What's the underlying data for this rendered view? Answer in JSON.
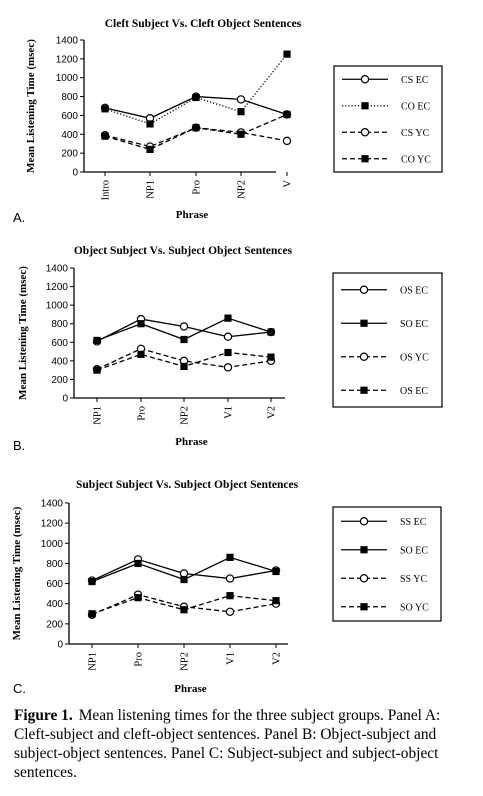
{
  "chart_data": [
    {
      "type": "line",
      "panel_label": "A.",
      "title": "Cleft Subject Vs. Cleft Object Sentences",
      "xlabel": "Phrase",
      "ylabel": "Mean Listening Time (msec)",
      "ylim": [
        0,
        1400
      ],
      "yticks": [
        0,
        200,
        400,
        600,
        800,
        1000,
        1200,
        1400
      ],
      "categories": [
        "Intro",
        "NP1",
        "Pro",
        "NP2",
        "V"
      ],
      "legend_position": "right",
      "series": [
        {
          "name": "CS EC",
          "style": "solid",
          "marker": "open",
          "values": [
            680,
            570,
            800,
            770,
            610
          ]
        },
        {
          "name": "CO EC",
          "style": "dotted",
          "marker": "filled",
          "values": [
            670,
            510,
            790,
            640,
            1250
          ]
        },
        {
          "name": "CS YC",
          "style": "dashed",
          "marker": "open",
          "values": [
            390,
            270,
            470,
            420,
            330
          ]
        },
        {
          "name": "CO YC",
          "style": "dashed",
          "marker": "filled",
          "values": [
            380,
            240,
            470,
            400,
            610
          ]
        }
      ]
    },
    {
      "type": "line",
      "panel_label": "B.",
      "title": "Object Subject Vs. Subject Object Sentences",
      "xlabel": "Phrase",
      "ylabel": "Mean Listening Time (msec)",
      "ylim": [
        0,
        1400
      ],
      "yticks": [
        0,
        200,
        400,
        600,
        800,
        1000,
        1200,
        1400
      ],
      "categories": [
        "NP1",
        "Pro",
        "NP2",
        "V1",
        "V2"
      ],
      "legend_position": "right",
      "series": [
        {
          "name": "OS EC",
          "style": "solid",
          "marker": "open",
          "values": [
            610,
            850,
            770,
            660,
            710
          ]
        },
        {
          "name": "SO EC",
          "style": "solid",
          "marker": "filled",
          "values": [
            620,
            800,
            630,
            860,
            710
          ]
        },
        {
          "name": "OS YC",
          "style": "dashed",
          "marker": "open",
          "values": [
            310,
            530,
            400,
            330,
            400
          ]
        },
        {
          "name": "OS EC",
          "style": "dashed",
          "marker": "filled",
          "values": [
            300,
            470,
            340,
            490,
            440
          ]
        }
      ]
    },
    {
      "type": "line",
      "panel_label": "C.",
      "title": "Subject Subject Vs. Subject Object Sentences",
      "xlabel": "Phrase",
      "ylabel": "Mean Listening Time (msec)",
      "ylim": [
        0,
        1400
      ],
      "yticks": [
        0,
        200,
        400,
        600,
        800,
        1000,
        1200,
        1400
      ],
      "categories": [
        "NP1",
        "Pro",
        "NP2",
        "V1",
        "V2"
      ],
      "legend_position": "right",
      "series": [
        {
          "name": "SS EC",
          "style": "solid",
          "marker": "open",
          "values": [
            630,
            840,
            700,
            650,
            730
          ]
        },
        {
          "name": "SO EC",
          "style": "solid",
          "marker": "filled",
          "values": [
            620,
            800,
            640,
            860,
            720
          ]
        },
        {
          "name": "SS YC",
          "style": "dashed",
          "marker": "open",
          "values": [
            290,
            490,
            370,
            320,
            400
          ]
        },
        {
          "name": "SO YC",
          "style": "dashed",
          "marker": "filled",
          "values": [
            300,
            460,
            340,
            480,
            430
          ]
        }
      ]
    }
  ],
  "caption": {
    "label": "Figure 1.",
    "text": "Mean listening times for the three subject groups. Panel A: Cleft-subject and cleft-object sentences. Panel B: Object-subject and subject-object sentences. Panel C: Subject-subject and subject-object sentences."
  }
}
